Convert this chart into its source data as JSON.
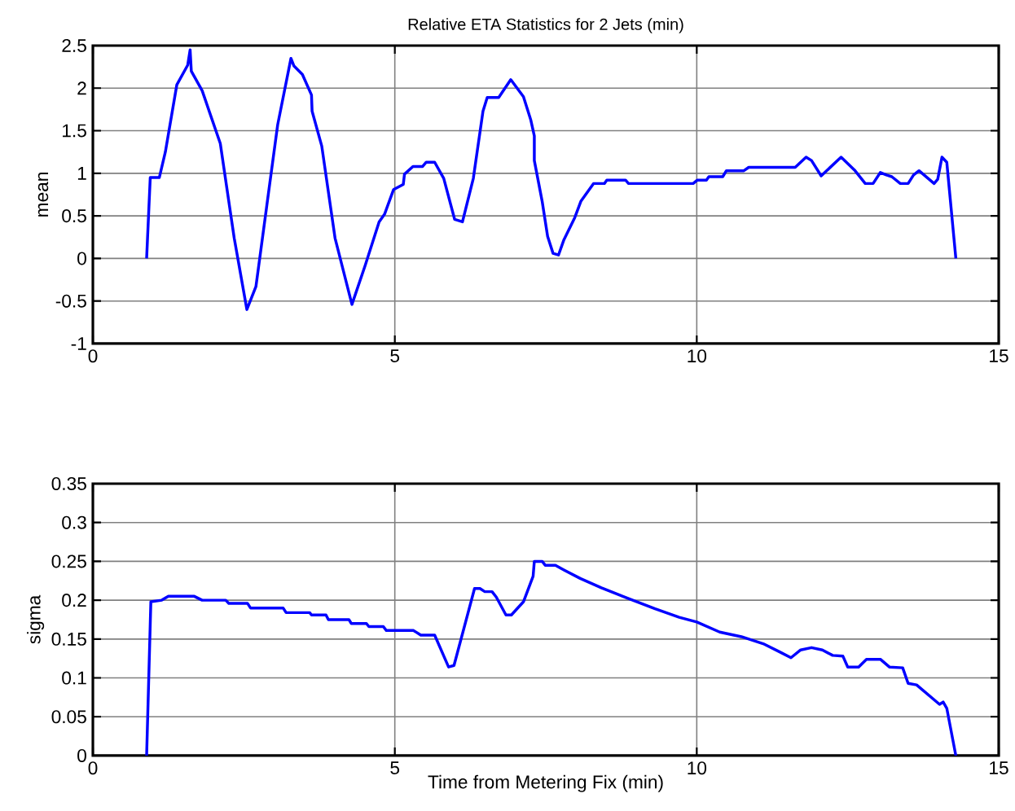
{
  "chart_data": [
    {
      "type": "line",
      "title": "Relative ETA Statistics for 2 Jets (min)",
      "ylabel": "mean",
      "xlim": [
        0,
        15
      ],
      "xticks": [
        0,
        5,
        10,
        15
      ],
      "ylim": [
        -1,
        2.5
      ],
      "yticks": [
        -1,
        -0.5,
        0,
        0.5,
        1,
        1.5,
        2,
        2.5
      ],
      "grid": true,
      "marker": "none",
      "line_style": "solid",
      "series": [
        {
          "color": "#0000ff",
          "x": [
            0.89,
            0.95,
            1.1,
            1.2,
            1.39,
            1.57,
            1.61,
            1.63,
            1.81,
            2.11,
            2.34,
            2.55,
            2.7,
            2.88,
            3.06,
            3.28,
            3.33,
            3.47,
            3.62,
            3.63,
            3.79,
            4.01,
            4.29,
            4.51,
            4.74,
            4.83,
            4.98,
            5.14,
            5.16,
            5.3,
            5.46,
            5.52,
            5.66,
            5.81,
            5.99,
            6.12,
            6.3,
            6.46,
            6.53,
            6.72,
            6.92,
            7.13,
            7.25,
            7.31,
            7.31,
            7.44,
            7.53,
            7.62,
            7.71,
            7.8,
            7.98,
            8.08,
            8.29,
            8.47,
            8.51,
            8.82,
            8.87,
            9.94,
            10.01,
            10.16,
            10.2,
            10.43,
            10.49,
            10.78,
            10.86,
            11.63,
            11.81,
            11.9,
            12.06,
            12.39,
            12.61,
            12.79,
            12.92,
            13.04,
            13.14,
            13.23,
            13.37,
            13.5,
            13.59,
            13.68,
            13.93,
            13.99,
            14.06,
            14.14,
            14.29
          ],
          "values": [
            0,
            0.95,
            0.95,
            1.25,
            2.04,
            2.27,
            2.45,
            2.2,
            1.97,
            1.35,
            0.24,
            -0.6,
            -0.33,
            0.62,
            1.57,
            2.35,
            2.26,
            2.16,
            1.92,
            1.73,
            1.32,
            0.24,
            -0.54,
            -0.08,
            0.43,
            0.52,
            0.81,
            0.87,
            0.99,
            1.08,
            1.08,
            1.13,
            1.13,
            0.94,
            0.46,
            0.43,
            0.94,
            1.73,
            1.89,
            1.89,
            2.1,
            1.9,
            1.63,
            1.44,
            1.15,
            0.67,
            0.26,
            0.06,
            0.04,
            0.22,
            0.48,
            0.67,
            0.88,
            0.88,
            0.92,
            0.92,
            0.88,
            0.88,
            0.92,
            0.92,
            0.96,
            0.96,
            1.03,
            1.03,
            1.07,
            1.07,
            1.19,
            1.15,
            0.97,
            1.19,
            1.04,
            0.88,
            0.88,
            1.01,
            0.98,
            0.96,
            0.88,
            0.88,
            0.98,
            1.03,
            0.88,
            0.93,
            1.19,
            1.13,
            0
          ]
        }
      ]
    },
    {
      "type": "line",
      "xlabel": "Time from Metering Fix (min)",
      "ylabel": "sigma",
      "xlim": [
        0,
        15
      ],
      "xticks": [
        0,
        5,
        10,
        15
      ],
      "ylim": [
        0,
        0.35
      ],
      "yticks": [
        0,
        0.05,
        0.1,
        0.15,
        0.2,
        0.25,
        0.3,
        0.35
      ],
      "grid": true,
      "marker": "none",
      "line_style": "solid",
      "series": [
        {
          "color": "#0000ff",
          "x": [
            0.89,
            0.96,
            1.14,
            1.25,
            1.68,
            1.81,
            2.2,
            2.25,
            2.56,
            2.61,
            3.15,
            3.2,
            3.59,
            3.62,
            3.86,
            3.9,
            4.24,
            4.28,
            4.53,
            4.57,
            4.81,
            4.86,
            5.31,
            5.43,
            5.66,
            5.89,
            5.98,
            6.32,
            6.41,
            6.49,
            6.61,
            6.68,
            6.84,
            6.93,
            7.13,
            7.29,
            7.31,
            7.44,
            7.49,
            7.66,
            7.8,
            8.07,
            8.42,
            8.87,
            9.31,
            9.71,
            10.0,
            10.38,
            10.74,
            11.1,
            11.36,
            11.56,
            11.72,
            11.9,
            12.08,
            12.25,
            12.42,
            12.5,
            12.68,
            12.81,
            13.04,
            13.19,
            13.41,
            13.5,
            13.64,
            14.02,
            14.08,
            14.14,
            14.29
          ],
          "values": [
            0,
            0.198,
            0.2,
            0.205,
            0.205,
            0.2,
            0.2,
            0.196,
            0.196,
            0.19,
            0.19,
            0.184,
            0.184,
            0.181,
            0.181,
            0.175,
            0.175,
            0.17,
            0.17,
            0.166,
            0.166,
            0.161,
            0.161,
            0.155,
            0.155,
            0.114,
            0.116,
            0.215,
            0.215,
            0.211,
            0.211,
            0.204,
            0.181,
            0.181,
            0.198,
            0.231,
            0.25,
            0.25,
            0.245,
            0.245,
            0.239,
            0.228,
            0.216,
            0.202,
            0.189,
            0.178,
            0.172,
            0.159,
            0.153,
            0.144,
            0.134,
            0.126,
            0.136,
            0.139,
            0.136,
            0.129,
            0.128,
            0.114,
            0.114,
            0.124,
            0.124,
            0.114,
            0.113,
            0.093,
            0.091,
            0.066,
            0.069,
            0.061,
            0
          ]
        }
      ]
    }
  ]
}
